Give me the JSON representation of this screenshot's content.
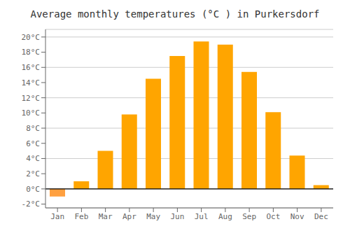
{
  "chart_data": {
    "type": "bar",
    "title": "Average monthly temperatures (°C ) in Purkersdorf",
    "categories": [
      "Jan",
      "Feb",
      "Mar",
      "Apr",
      "May",
      "Jun",
      "Jul",
      "Aug",
      "Sep",
      "Oct",
      "Nov",
      "Dec"
    ],
    "values": [
      -1.0,
      1.0,
      5.0,
      9.8,
      14.5,
      17.5,
      19.4,
      19.0,
      15.4,
      10.1,
      4.4,
      0.5
    ],
    "colors": [
      "#FFA040",
      "#FFA500",
      "#FFA500",
      "#FFA500",
      "#FFA500",
      "#FFA500",
      "#FFA500",
      "#FFA500",
      "#FFA500",
      "#FFA500",
      "#FFA500",
      "#FFA500"
    ],
    "ylim": [
      -2.5,
      21
    ],
    "yticks": [
      {
        "value": -2,
        "label": "-2°C"
      },
      {
        "value": 0,
        "label": "0°C"
      },
      {
        "value": 2,
        "label": "2°C"
      },
      {
        "value": 4,
        "label": "4°C"
      },
      {
        "value": 6,
        "label": "6°C"
      },
      {
        "value": 8,
        "label": "8°C"
      },
      {
        "value": 10,
        "label": "10°C"
      },
      {
        "value": 12,
        "label": "12°C"
      },
      {
        "value": 14,
        "label": "14°C"
      },
      {
        "value": 16,
        "label": "16°C"
      },
      {
        "value": 18,
        "label": "18°C"
      },
      {
        "value": 20,
        "label": "20°C"
      }
    ],
    "grid": true
  }
}
